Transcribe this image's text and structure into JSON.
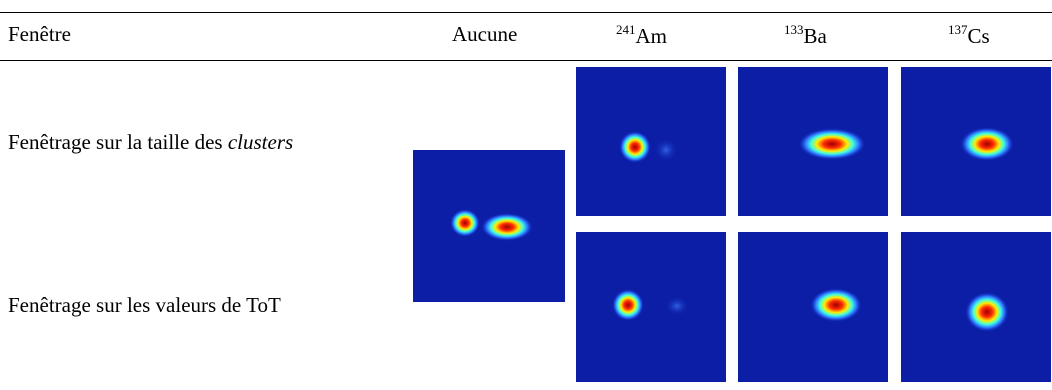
{
  "header": {
    "columns": [
      {
        "text": "Fenêtre"
      },
      {
        "text": "Aucune"
      },
      {
        "sup": "241",
        "text": "Am"
      },
      {
        "sup": "133",
        "text": "Ba"
      },
      {
        "sup": "137",
        "text": "Cs"
      }
    ]
  },
  "rows": [
    {
      "label": "Fenêtrage sur la taille des ",
      "label_italic": "clusters"
    },
    {
      "label": "Fenêtrage sur les valeurs de ToT"
    }
  ]
}
